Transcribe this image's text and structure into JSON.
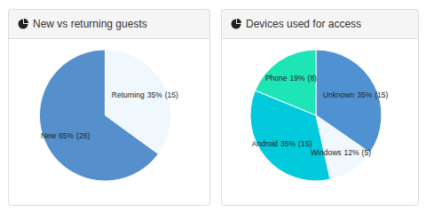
{
  "chart_data": [
    {
      "type": "pie",
      "title": "New vs returning guests",
      "categories": [
        "Returning",
        "New"
      ],
      "values": [
        35,
        65
      ],
      "value_labels": [
        "35%",
        "65%"
      ],
      "counts": [
        15,
        28
      ],
      "count_labels": [
        "(15)",
        "(28)"
      ],
      "colors": [
        "#f0f7fd",
        "#5590cd"
      ],
      "data_labels": true
    },
    {
      "type": "pie",
      "title": "Devices used for access",
      "categories": [
        "Unknown",
        "Windows",
        "Android",
        "Phone"
      ],
      "values": [
        35,
        12,
        35,
        19
      ],
      "value_labels": [
        "35%",
        "12%",
        "35%",
        "19%"
      ],
      "counts": [
        15,
        5,
        15,
        8
      ],
      "count_labels": [
        "(15)",
        "(5)",
        "(15)",
        "(8)"
      ],
      "colors": [
        "#5092d1",
        "#f0f7fd",
        "#00cadb",
        "#1ee5b6"
      ],
      "data_labels": true
    }
  ]
}
